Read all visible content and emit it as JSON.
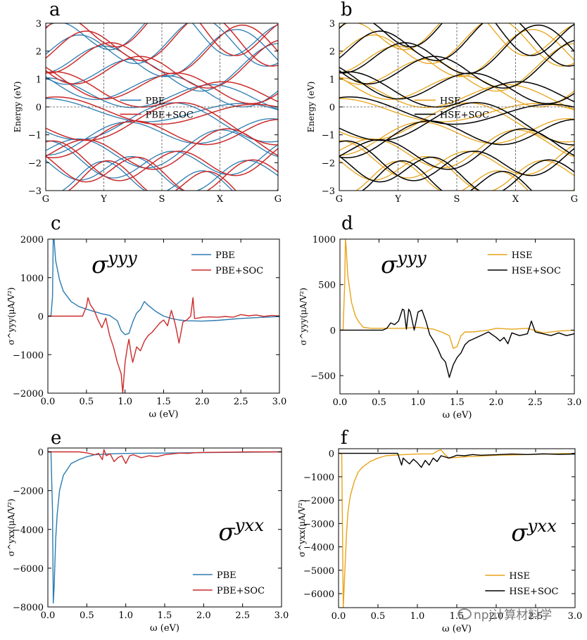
{
  "colors": {
    "pbe": "#2b7bb0",
    "soc": "#cc2a2a",
    "hse": "#e8a41a",
    "hsesoc": "#000000",
    "axis": "#000000"
  },
  "watermark": "npj计算材料学",
  "chart_data": [
    {
      "id": "a",
      "type": "line",
      "panel_label": "a",
      "ylabel": "Energy (eV)",
      "ylim": [
        -3,
        3
      ],
      "yticks": [
        "3",
        "2",
        "1",
        "0",
        "−1",
        "−2",
        "−3"
      ],
      "kpoints": [
        "G",
        "Y",
        "S",
        "X",
        "G"
      ],
      "legend": [
        "PBE",
        "PBE+SOC"
      ],
      "legend_pos": "center",
      "series": [
        {
          "name": "PBE",
          "color": "pbe"
        },
        {
          "name": "PBE+SOC",
          "color": "soc"
        }
      ]
    },
    {
      "id": "b",
      "type": "line",
      "panel_label": "b",
      "ylabel": "Energy (eV)",
      "ylim": [
        -3,
        3
      ],
      "yticks": [
        "3",
        "2",
        "1",
        "0",
        "−1",
        "−2",
        "−3"
      ],
      "kpoints": [
        "G",
        "Y",
        "S",
        "X",
        "G"
      ],
      "legend": [
        "HSE",
        "HSE+SOC"
      ],
      "legend_pos": "center",
      "series": [
        {
          "name": "HSE",
          "color": "hse"
        },
        {
          "name": "HSE+SOC",
          "color": "hsesoc"
        }
      ]
    },
    {
      "id": "c",
      "type": "line",
      "panel_label": "c",
      "title": "σ^yyy",
      "xlabel": "ω (eV)",
      "ylabel": "σ^yyy(μA/V²)",
      "xlim": [
        0,
        3
      ],
      "ylim": [
        -2000,
        2000
      ],
      "xticks": [
        "0.0",
        "0.5",
        "1.0",
        "1.5",
        "2.0",
        "2.5",
        "3.0"
      ],
      "yticks": [
        "2000",
        "1000",
        "0",
        "−1000",
        "−2000"
      ],
      "legend": [
        "PBE",
        "PBE+SOC"
      ],
      "legend_pos": "top-right",
      "series": [
        {
          "name": "PBE",
          "color": "pbe",
          "x": [
            0,
            0.04,
            0.06,
            0.07,
            0.08,
            0.1,
            0.15,
            0.2,
            0.3,
            0.4,
            0.5,
            0.6,
            0.7,
            0.8,
            0.9,
            0.95,
            1.0,
            1.05,
            1.1,
            1.15,
            1.2,
            1.25,
            1.3,
            1.4,
            1.5,
            1.6,
            1.7,
            1.8,
            2.0,
            2.2,
            2.5,
            2.8,
            3.0
          ],
          "y": [
            0,
            0,
            500,
            2100,
            2000,
            1450,
            950,
            650,
            380,
            250,
            180,
            120,
            60,
            20,
            -120,
            -380,
            -480,
            -450,
            -150,
            80,
            180,
            380,
            280,
            120,
            0,
            -60,
            -100,
            -120,
            -130,
            -110,
            -60,
            -30,
            -10
          ]
        },
        {
          "name": "PBE+SOC",
          "color": "soc",
          "x": [
            0,
            0.3,
            0.4,
            0.45,
            0.5,
            0.52,
            0.55,
            0.6,
            0.65,
            0.7,
            0.75,
            0.8,
            0.85,
            0.9,
            0.95,
            0.97,
            1.0,
            1.03,
            1.05,
            1.08,
            1.1,
            1.15,
            1.2,
            1.25,
            1.3,
            1.35,
            1.4,
            1.45,
            1.5,
            1.55,
            1.6,
            1.65,
            1.7,
            1.75,
            1.8,
            1.85,
            1.88,
            1.9,
            1.95,
            2.0,
            2.1,
            2.2,
            2.3,
            2.4,
            2.5,
            2.6,
            2.7,
            2.8,
            2.9,
            3.0
          ],
          "y": [
            0,
            0,
            0,
            0,
            250,
            480,
            300,
            150,
            -100,
            -300,
            -50,
            -500,
            -800,
            -1200,
            -1500,
            -2000,
            -1200,
            -800,
            -600,
            -1000,
            -1200,
            -800,
            -900,
            -650,
            -500,
            -420,
            -300,
            -180,
            -100,
            -250,
            150,
            -200,
            -700,
            -150,
            -100,
            0,
            480,
            -60,
            -50,
            -30,
            -20,
            -30,
            -10,
            -30,
            40,
            10,
            30,
            -10,
            20,
            0
          ]
        }
      ]
    },
    {
      "id": "d",
      "type": "line",
      "panel_label": "d",
      "title": "σ^yyy",
      "xlabel": "ω (eV)",
      "ylabel": "σ^yyy(μA/V²)",
      "xlim": [
        0,
        3
      ],
      "ylim": [
        -700,
        1000
      ],
      "xticks": [
        "0.0",
        "0.5",
        "1.0",
        "1.5",
        "2.0",
        "2.5",
        "3.0"
      ],
      "yticks": [
        "1000",
        "500",
        "0",
        "−500"
      ],
      "legend": [
        "HSE",
        "HSE+SOC"
      ],
      "legend_pos": "top-center",
      "series": [
        {
          "name": "HSE",
          "color": "hse",
          "x": [
            0,
            0.04,
            0.06,
            0.07,
            0.08,
            0.1,
            0.15,
            0.2,
            0.25,
            0.3,
            0.4,
            0.5,
            0.8,
            1.0,
            1.1,
            1.2,
            1.3,
            1.4,
            1.45,
            1.5,
            1.55,
            1.6,
            1.7,
            1.8,
            1.9,
            2.0,
            2.2,
            2.4,
            2.6,
            2.8,
            3.0
          ],
          "y": [
            0,
            0,
            500,
            1000,
            900,
            600,
            300,
            150,
            80,
            30,
            20,
            20,
            20,
            30,
            20,
            10,
            -20,
            -60,
            -200,
            -180,
            -60,
            -20,
            -20,
            -10,
            0,
            20,
            10,
            20,
            -30,
            -10,
            0
          ]
        },
        {
          "name": "HSE+SOC",
          "color": "hsesoc",
          "x": [
            0,
            0.55,
            0.6,
            0.65,
            0.7,
            0.75,
            0.8,
            0.82,
            0.85,
            0.88,
            0.9,
            0.95,
            1.0,
            1.05,
            1.1,
            1.15,
            1.2,
            1.25,
            1.3,
            1.35,
            1.4,
            1.45,
            1.5,
            1.55,
            1.6,
            1.65,
            1.7,
            1.8,
            1.9,
            2.0,
            2.05,
            2.1,
            2.15,
            2.2,
            2.3,
            2.4,
            2.45,
            2.5,
            2.6,
            2.7,
            2.8,
            2.9,
            3.0
          ],
          "y": [
            0,
            0,
            20,
            80,
            60,
            100,
            230,
            220,
            10,
            230,
            200,
            0,
            200,
            220,
            100,
            -50,
            -120,
            -200,
            -300,
            -350,
            -520,
            -380,
            -300,
            -250,
            -160,
            -120,
            -100,
            -60,
            -20,
            -80,
            -120,
            -80,
            -150,
            -30,
            -60,
            -40,
            100,
            -20,
            -40,
            -60,
            -30,
            -60,
            -40
          ]
        }
      ]
    },
    {
      "id": "e",
      "type": "line",
      "panel_label": "e",
      "title": "σ^yxx",
      "xlabel": "ω (eV)",
      "ylabel": "σ^yxx(μA/V²)",
      "xlim": [
        0,
        3
      ],
      "ylim": [
        -8000,
        200
      ],
      "xticks": [
        "0.0",
        "0.5",
        "1.0",
        "1.5",
        "2.0",
        "2.5",
        "3.0"
      ],
      "yticks": [
        "0",
        "−2000",
        "−4000",
        "−6000",
        "−8000"
      ],
      "legend": [
        "PBE",
        "PBE+SOC"
      ],
      "legend_pos": "bottom-right",
      "series": [
        {
          "name": "PBE",
          "color": "pbe",
          "x": [
            0,
            0.04,
            0.06,
            0.07,
            0.08,
            0.1,
            0.12,
            0.15,
            0.2,
            0.3,
            0.4,
            0.5,
            0.6,
            0.8,
            1.0,
            1.5,
            2.0,
            2.5,
            3.0
          ],
          "y": [
            0,
            0,
            -3000,
            -7800,
            -7000,
            -4500,
            -3200,
            -2000,
            -1200,
            -600,
            -400,
            -250,
            -150,
            -100,
            -80,
            -60,
            -40,
            -20,
            0
          ]
        },
        {
          "name": "PBE+SOC",
          "color": "soc",
          "x": [
            0,
            0.4,
            0.5,
            0.6,
            0.65,
            0.7,
            0.72,
            0.75,
            0.8,
            0.85,
            0.9,
            0.95,
            1.0,
            1.05,
            1.1,
            1.2,
            1.3,
            1.4,
            1.5,
            1.6,
            1.7,
            1.8,
            1.9,
            2.0,
            2.2,
            2.4,
            2.6,
            2.8,
            3.0
          ],
          "y": [
            0,
            0,
            -50,
            -150,
            -80,
            -400,
            120,
            -200,
            -100,
            -500,
            -300,
            -200,
            -600,
            -200,
            -150,
            -300,
            -200,
            -250,
            -150,
            -100,
            -60,
            -80,
            -40,
            -30,
            -20,
            -10,
            0,
            0,
            0
          ]
        }
      ]
    },
    {
      "id": "f",
      "type": "line",
      "panel_label": "f",
      "title": "σ^yxx",
      "xlabel": "ω (eV)",
      "ylabel": "σ^yxx(μA/V²)",
      "xlim": [
        0,
        3
      ],
      "ylim": [
        -6600,
        200
      ],
      "xticks": [
        "0.0",
        "0.5",
        "1.0",
        "1.5",
        "2.0",
        "2.5",
        "3.0"
      ],
      "yticks": [
        "0",
        "−1000",
        "−2000",
        "−3000",
        "−4000",
        "−5000",
        "−6000"
      ],
      "legend": [
        "HSE",
        "HSE+SOC"
      ],
      "legend_pos": "bottom-right",
      "series": [
        {
          "name": "HSE",
          "color": "hse",
          "x": [
            0,
            0.04,
            0.06,
            0.08,
            0.1,
            0.12,
            0.15,
            0.2,
            0.25,
            0.3,
            0.4,
            0.5,
            0.6,
            0.8,
            1.0,
            1.2,
            1.25,
            1.3,
            1.35,
            1.4,
            1.6,
            2.0,
            2.5,
            3.0
          ],
          "y": [
            0,
            0,
            -6600,
            -5000,
            -3500,
            -2500,
            -1800,
            -1200,
            -800,
            -600,
            -350,
            -200,
            -100,
            -60,
            -30,
            -20,
            100,
            150,
            -50,
            -200,
            -150,
            -80,
            -40,
            0
          ]
        },
        {
          "name": "HSE+SOC",
          "color": "hsesoc",
          "x": [
            0,
            0.75,
            0.8,
            0.82,
            0.85,
            0.9,
            0.95,
            1.0,
            1.05,
            1.1,
            1.15,
            1.2,
            1.25,
            1.3,
            1.4,
            1.45,
            1.5,
            1.6,
            1.7,
            1.8,
            2.0,
            2.2,
            2.4,
            2.6,
            2.8,
            3.0
          ],
          "y": [
            0,
            0,
            -500,
            -200,
            -300,
            -450,
            -250,
            -400,
            -600,
            -300,
            -500,
            -200,
            -350,
            -100,
            -200,
            -150,
            -80,
            -100,
            -50,
            -80,
            -60,
            -30,
            -50,
            -20,
            -40,
            -30
          ]
        }
      ]
    }
  ]
}
